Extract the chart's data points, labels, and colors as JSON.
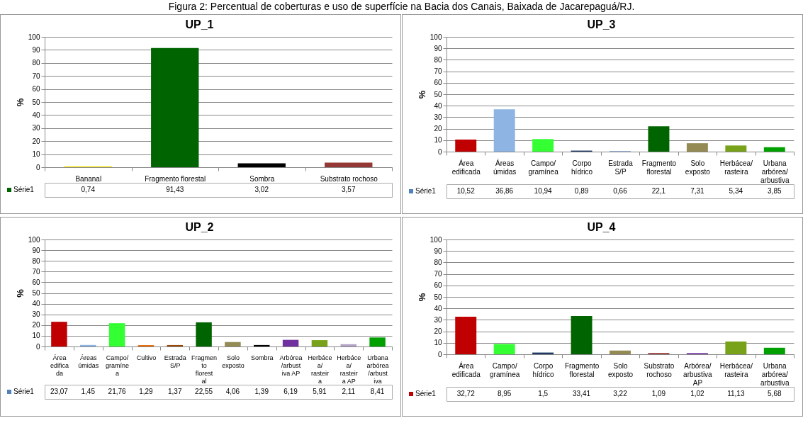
{
  "chart_data": [
    {
      "type": "other",
      "title": "Figura 2: Percentual de coberturas e uso de superfície na Bacia dos Canais, Baixada de Jacarepaguá/RJ."
    },
    {
      "type": "bar",
      "title": "UP_1",
      "ylabel": "%",
      "categories": [
        "Bananal",
        "Fragmento florestal",
        "Sombra",
        "Substrato rochoso"
      ],
      "series": [
        {
          "name": "Série1",
          "color": "#006400",
          "colors": [
            "#f0e000",
            "#006400",
            "#000000",
            "#953735"
          ],
          "values": [
            0.74,
            91.43,
            3.02,
            3.57
          ],
          "value_labels": [
            "0,74",
            "91,43",
            "3,02",
            "3,57"
          ]
        }
      ],
      "ylim": [
        0,
        100
      ],
      "yticks": [
        0,
        10,
        20,
        30,
        40,
        50,
        60,
        70,
        80,
        90,
        100
      ],
      "grid": "y",
      "legend": "bottom left"
    },
    {
      "type": "bar",
      "title": "UP_3",
      "ylabel": "%",
      "categories": [
        "Área edificada",
        "Áreas úmidas",
        "Campo/gramínea",
        "Corpo hídrico",
        "Estrada S/P",
        "Fragmento florestal",
        "Solo exposto",
        "Herbácea/rasteira",
        "Urbana arbórea/arbustiva"
      ],
      "series": [
        {
          "name": "Série1",
          "color": "#4f81bd",
          "colors": [
            "#c00000",
            "#8db4e2",
            "#33ff33",
            "#1f3864",
            "#95b3d7",
            "#006400",
            "#948a54",
            "#77a21a",
            "#00a000"
          ],
          "values": [
            10.52,
            36.86,
            10.94,
            0.89,
            0.66,
            22.1,
            7.31,
            5.34,
            3.85
          ],
          "value_labels": [
            "10,52",
            "36,86",
            "10,94",
            "0,89",
            "0,66",
            "22,1",
            "7,31",
            "5,34",
            "3,85"
          ]
        }
      ],
      "ylim": [
        0,
        100
      ],
      "yticks": [
        0,
        10,
        20,
        30,
        40,
        50,
        60,
        70,
        80,
        90,
        100
      ],
      "grid": "y",
      "legend": "bottom left"
    },
    {
      "type": "bar",
      "title": "UP_2",
      "ylabel": "%",
      "categories": [
        "Área edificada",
        "Áreas úmidas",
        "Campo/gramínea",
        "Cultivo",
        "Estrada S/P",
        "Fragmento florestal",
        "Solo exposto",
        "Sombra",
        "Arbórea/arbustiva AP",
        "Herbácea/rasteira",
        "Herbácea/rasteira AP",
        "Urbana arbórea/arbustiva"
      ],
      "series": [
        {
          "name": "Série1",
          "color": "#4f81bd",
          "colors": [
            "#c00000",
            "#8db4e2",
            "#33ff33",
            "#e46c0a",
            "#984807",
            "#006400",
            "#948a54",
            "#000000",
            "#7030a0",
            "#77a21a",
            "#b3a2c7",
            "#00a000"
          ],
          "values": [
            23.07,
            1.45,
            21.76,
            1.29,
            1.37,
            22.55,
            4.06,
            1.39,
            6.19,
            5.91,
            2.11,
            8.41
          ],
          "value_labels": [
            "23,07",
            "1,45",
            "21,76",
            "1,29",
            "1,37",
            "22,55",
            "4,06",
            "1,39",
            "6,19",
            "5,91",
            "2,11",
            "8,41"
          ]
        }
      ],
      "ylim": [
        0,
        100
      ],
      "yticks": [
        0,
        10,
        20,
        30,
        40,
        50,
        60,
        70,
        80,
        90,
        100
      ],
      "grid": "y",
      "legend": "bottom left"
    },
    {
      "type": "bar",
      "title": "UP_4",
      "ylabel": "%",
      "categories": [
        "Área edificada",
        "Campo/gramínea",
        "Corpo hídrico",
        "Fragmento florestal",
        "Solo exposto",
        "Substrato rochoso",
        "Arbórea/arbustiva AP",
        "Herbácea/rasteira",
        "Urbana arbórea/arbustiva"
      ],
      "series": [
        {
          "name": "Série1",
          "color": "#c00000",
          "colors": [
            "#c00000",
            "#33ff33",
            "#1f3864",
            "#006400",
            "#948a54",
            "#953735",
            "#7030a0",
            "#77a21a",
            "#00a000"
          ],
          "values": [
            32.72,
            8.95,
            1.5,
            33.41,
            3.22,
            1.09,
            1.02,
            11.13,
            5.68
          ],
          "value_labels": [
            "32,72",
            "8,95",
            "1,5",
            "33,41",
            "3,22",
            "1,09",
            "1,02",
            "11,13",
            "5,68"
          ]
        }
      ],
      "ylim": [
        0,
        100
      ],
      "yticks": [
        0,
        10,
        20,
        30,
        40,
        50,
        60,
        70,
        80,
        90,
        100
      ],
      "grid": "y",
      "legend": "bottom left"
    }
  ]
}
